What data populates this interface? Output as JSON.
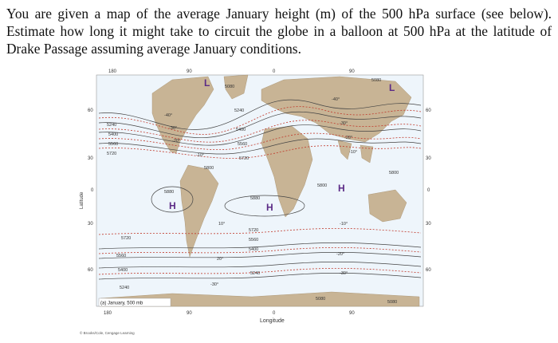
{
  "question": "You are given a map of the average January height (m) of the 500 hPa surface (see below). Estimate how long it might take to circuit the globe in a balloon at 500 hPa at the latitude of Drake Passage assuming average January conditions.",
  "figure": {
    "caption": "(a) January, 500 mb",
    "credit": "© Brooks/Cole, Cengage Learning",
    "top_lon_labels": [
      "180",
      "90",
      "0",
      "90"
    ],
    "bottom_lon_labels": [
      "180",
      "90",
      "0",
      "90"
    ],
    "x_axis_label": "Longitude",
    "y_axis_label": "Latitude",
    "lat_labels_left": [
      "60",
      "30",
      "0",
      "30",
      "60"
    ],
    "lat_labels_right": [
      "60",
      "30",
      "0",
      "30",
      "60"
    ],
    "height_labels": {
      "north": [
        "5240",
        "5400",
        "5560",
        "5720"
      ],
      "north_center": [
        "5080",
        "5240",
        "5400",
        "5560",
        "5720"
      ],
      "north_east": "5080",
      "tropics": [
        "5880",
        "5880",
        "5800",
        "5800",
        "5800"
      ],
      "south": [
        "5720",
        "5560",
        "5400",
        "5240"
      ],
      "south_center": [
        "5720",
        "5560",
        "5400",
        "5240"
      ],
      "south_east": [
        "5080",
        "5080"
      ]
    },
    "temp_labels": {
      "north": [
        "-40°",
        "-30°",
        "-20°",
        "-10°"
      ],
      "north_east": [
        "-40°",
        "-30°",
        "-20°",
        "-10°"
      ],
      "south": [
        "10°",
        "20°",
        "-30°"
      ],
      "south_east": [
        "-10°",
        "-20°",
        "-30°"
      ]
    },
    "pressure_centers": {
      "low_north_west": "L",
      "low_north_east": "L",
      "high_east_pacific": "H",
      "high_atlantic": "H",
      "high_indian": "H"
    },
    "colors": {
      "land": "#c8b495",
      "ocean": "#eef5fb",
      "contour": "#444444",
      "isotherm": "#c0392b",
      "pressure_center": "#5b2a86"
    }
  }
}
